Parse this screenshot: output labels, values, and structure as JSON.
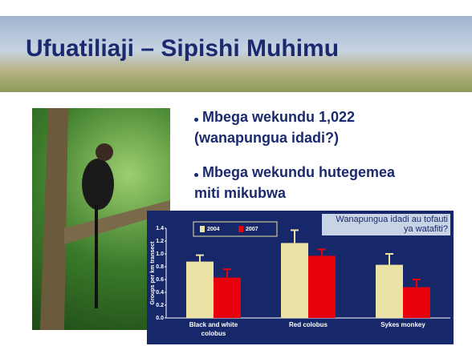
{
  "slide": {
    "title": "Ufuatiliaji – Sipishi Muhimu",
    "bullets": [
      [
        "Mbega wekundu 1,022",
        "(wanapungua idadi?)"
      ],
      [
        "Mbega wekundu hutegemea",
        "miti mikubwa"
      ]
    ]
  },
  "chart_data": {
    "type": "bar",
    "y_label": "Groups per km transect",
    "annotation": "Wanapungua idadi au tofauti ya watafiti?",
    "categories": [
      "Black and white colobus",
      "Red colobus",
      "Sykes monkey"
    ],
    "series": [
      {
        "name": "2004",
        "color": "#ebe3a6",
        "values": [
          0.88,
          1.17,
          0.83
        ],
        "errors": [
          0.1,
          0.2,
          0.17
        ]
      },
      {
        "name": "2007",
        "color": "#e8000b",
        "values": [
          0.63,
          0.97,
          0.48
        ],
        "errors": [
          0.13,
          0.1,
          0.12
        ]
      }
    ],
    "ylim": [
      0,
      1.4
    ],
    "yticks": [
      {
        "value": 0,
        "label": "0.0"
      },
      0.2,
      0.4,
      0.6,
      0.8,
      {
        "value": 1,
        "label": "1.0"
      },
      1.2,
      1.4
    ],
    "grid": false
  }
}
